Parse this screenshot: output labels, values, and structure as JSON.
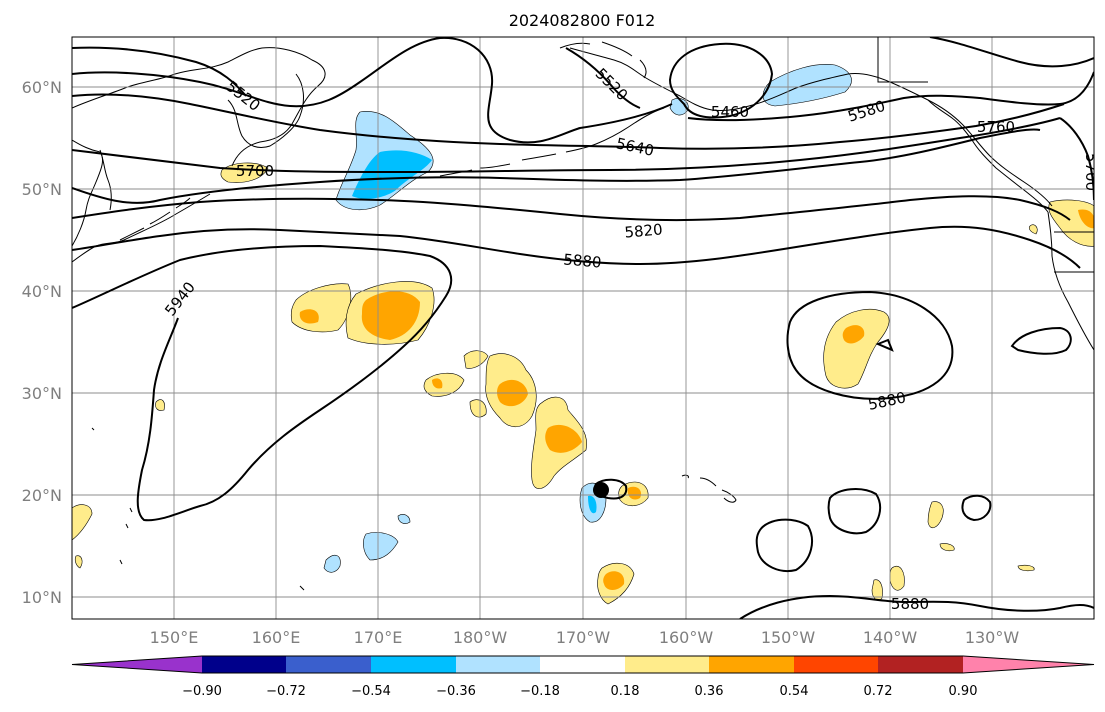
{
  "title": "2024082800 F012",
  "lat_labels": [
    "60°N",
    "50°N",
    "40°N",
    "30°N",
    "20°N",
    "10°N"
  ],
  "lon_labels": [
    "150°E",
    "160°E",
    "170°E",
    "180°W",
    "170°W",
    "160°W",
    "150°W",
    "140°W",
    "130°W"
  ],
  "contour_labels": [
    "5520",
    "5520",
    "5460",
    "5580",
    "5640",
    "5700",
    "5760",
    "5700",
    "5820",
    "5880",
    "5940",
    "5880",
    "5880"
  ],
  "colorbar": {
    "ticks": [
      "−0.90",
      "−0.72",
      "−0.54",
      "−0.36",
      "−0.18",
      "0.18",
      "0.36",
      "0.54",
      "0.72",
      "0.90"
    ],
    "colors": [
      "#9932cc",
      "#00008b",
      "#3a5fcd",
      "#00bfff",
      "#b0e2ff",
      "#ffffff",
      "#ffec8b",
      "#ffa500",
      "#ff4500",
      "#b22222",
      "#ff82ab"
    ]
  },
  "fill_colors": {
    "light_blue": "#b0e2ff",
    "sky_blue": "#00bfff",
    "light_yellow": "#ffec8b",
    "orange": "#ffa500",
    "orange_red": "#ff4500"
  }
}
